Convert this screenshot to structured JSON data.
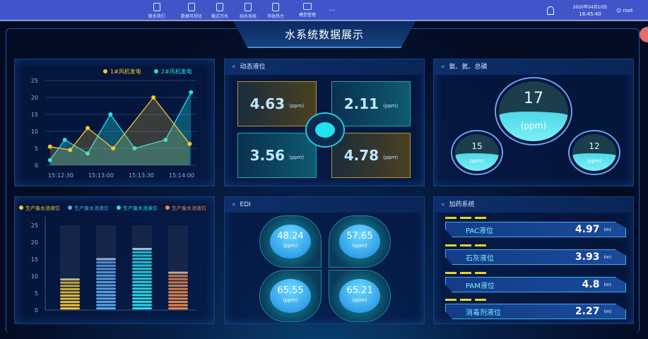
{
  "nav": {
    "items": [
      {
        "label": "联系我们",
        "icon": "document-icon"
      },
      {
        "label": "数据可视化",
        "icon": "document-icon"
      },
      {
        "label": "截式污水",
        "icon": "document-icon"
      },
      {
        "label": "纯水系统",
        "icon": "document-icon"
      },
      {
        "label": "市政热力",
        "icon": "files-icon"
      },
      {
        "label": "模型管理",
        "icon": "monitor-icon"
      }
    ],
    "more": "...",
    "date": "2020年04月10日",
    "time": "18:45:40",
    "user": "root"
  },
  "title": "水系统数据展示",
  "colors": {
    "nav": "#4056c8",
    "yellow": "#f5c632",
    "cyan": "#22e0ee",
    "blue": "#5aa8f0",
    "orange": "#f08a4a"
  },
  "chart_data": [
    {
      "type": "line",
      "legend": [
        "1#风机发电",
        "2#风机发电"
      ],
      "legend_placement": "top-right",
      "ylim": [
        0,
        25
      ],
      "yticks": [
        0,
        5,
        10,
        15,
        20,
        25
      ],
      "xticks": [
        "15:12:30",
        "15:13:00",
        "15:13:30",
        "15:14:00"
      ],
      "grid": true,
      "series": [
        {
          "name": "1#风机发电",
          "x": [
            "15:12:22",
            "15:12:37",
            "15:12:50",
            "15:13:09",
            "15:13:39",
            "15:14:06"
          ],
          "values": [
            5.5,
            4.5,
            11,
            5,
            20,
            6.3
          ]
        },
        {
          "name": "2#风机发电",
          "x": [
            "15:12:22",
            "15:12:33",
            "15:12:50",
            "15:13:07",
            "15:13:25",
            "15:13:48",
            "15:14:07"
          ],
          "values": [
            1.5,
            7.5,
            3.5,
            15,
            5,
            7.5,
            21.5
          ]
        }
      ]
    },
    {
      "type": "bar",
      "legend": [
        "生产废水池液位",
        "生产废水池液位",
        "生产废水池液位",
        "生产废水池液位"
      ],
      "legend_placement": "top",
      "ylim": [
        0,
        25
      ],
      "yticks": [
        0,
        5,
        10,
        15,
        20,
        25
      ],
      "values": [
        9.5,
        15.5,
        18.5,
        11.5
      ],
      "background_max": 25
    }
  ],
  "dynamic": {
    "title": "动态液位",
    "items": [
      {
        "value": "4.63",
        "unit": "(ppm)"
      },
      {
        "value": "2.11",
        "unit": "(ppm)"
      },
      {
        "value": "3.56",
        "unit": "(ppm)"
      },
      {
        "value": "4.78",
        "unit": "(ppm)"
      }
    ]
  },
  "nutrient": {
    "title": "氨、氮、总磷",
    "main": {
      "value": "17",
      "unit": "(ppm)",
      "level": 0.45
    },
    "left": {
      "value": "15",
      "unit": "(ppm)",
      "level": 0.45
    },
    "right": {
      "value": "12",
      "unit": "(ppm)",
      "level": 0.45
    }
  },
  "edi": {
    "title": "EDI",
    "items": [
      {
        "value": "48.24",
        "unit": "(ppm)"
      },
      {
        "value": "57.65",
        "unit": "(ppm)"
      },
      {
        "value": "65.55",
        "unit": "(ppm)"
      },
      {
        "value": "65.21",
        "unit": "(ppm)"
      }
    ]
  },
  "dosing": {
    "title": "加药系统",
    "items": [
      {
        "label": "PAC液位",
        "value": "4.97",
        "unit": "(m)"
      },
      {
        "label": "石灰液位",
        "value": "3.93",
        "unit": "(m)"
      },
      {
        "label": "PAM液位",
        "value": "4.8",
        "unit": "(m)"
      },
      {
        "label": "消毒剂液位",
        "value": "2.27",
        "unit": "(m)"
      }
    ]
  }
}
